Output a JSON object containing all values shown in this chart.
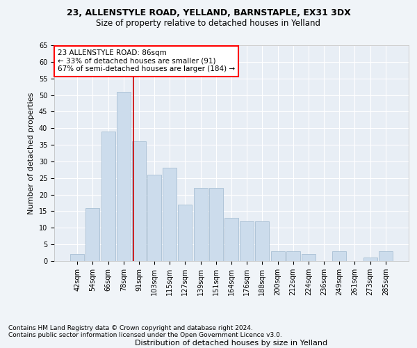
{
  "title1": "23, ALLENSTYLE ROAD, YELLAND, BARNSTAPLE, EX31 3DX",
  "title2": "Size of property relative to detached houses in Yelland",
  "xlabel": "Distribution of detached houses by size in Yelland",
  "ylabel": "Number of detached properties",
  "bar_color": "#ccdcec",
  "bar_edge_color": "#a8c0d4",
  "bg_color": "#e8eef5",
  "grid_color": "#ffffff",
  "annotation_text": "23 ALLENSTYLE ROAD: 86sqm\n← 33% of detached houses are smaller (91)\n67% of semi-detached houses are larger (184) →",
  "vline_color": "#cc0000",
  "categories": [
    "42sqm",
    "54sqm",
    "66sqm",
    "78sqm",
    "91sqm",
    "103sqm",
    "115sqm",
    "127sqm",
    "139sqm",
    "151sqm",
    "164sqm",
    "176sqm",
    "188sqm",
    "200sqm",
    "212sqm",
    "224sqm",
    "236sqm",
    "249sqm",
    "261sqm",
    "273sqm",
    "285sqm"
  ],
  "values": [
    2,
    16,
    39,
    51,
    36,
    26,
    28,
    17,
    22,
    22,
    13,
    12,
    12,
    3,
    3,
    2,
    0,
    3,
    0,
    1,
    3
  ],
  "ylim": [
    0,
    65
  ],
  "yticks": [
    0,
    5,
    10,
    15,
    20,
    25,
    30,
    35,
    40,
    45,
    50,
    55,
    60,
    65
  ],
  "footnote1": "Contains HM Land Registry data © Crown copyright and database right 2024.",
  "footnote2": "Contains public sector information licensed under the Open Government Licence v3.0.",
  "title1_fontsize": 9,
  "title2_fontsize": 8.5,
  "axis_label_fontsize": 8,
  "tick_fontsize": 7,
  "annot_fontsize": 7.5,
  "footnote_fontsize": 6.5
}
